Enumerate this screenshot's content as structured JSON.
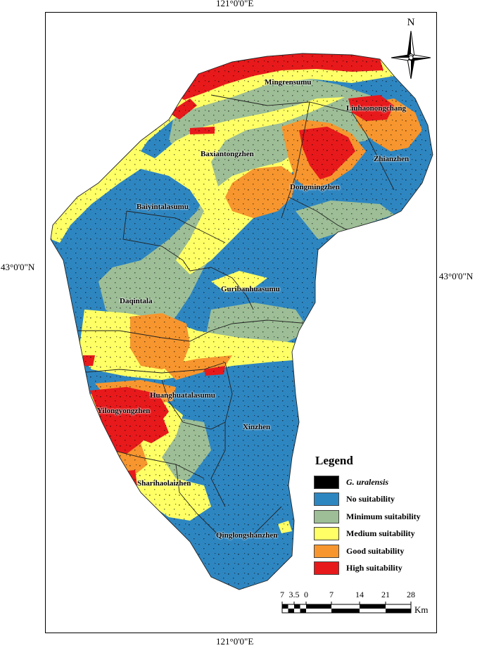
{
  "coordinates": {
    "top": "121°0'0\"E",
    "bottom": "121°0'0\"E",
    "left": "43°0'0\"N",
    "right": "43°0'0\"N"
  },
  "north_arrow": {
    "letter": "N",
    "icon": "north-arrow-icon"
  },
  "places": [
    {
      "name": "Mingrensumu"
    },
    {
      "name": "Liuhaonongchang"
    },
    {
      "name": "Baxiantongzhen"
    },
    {
      "name": "Zhianzhen"
    },
    {
      "name": "Dongmingzhen"
    },
    {
      "name": "Baiyintalasumu"
    },
    {
      "name": "Guribanhuasumu"
    },
    {
      "name": "Daqintala"
    },
    {
      "name": "Huanghuatalasumu"
    },
    {
      "name": "Yilongyongzhen"
    },
    {
      "name": "Xinzhen"
    },
    {
      "name": "Sharihaolaizhen"
    },
    {
      "name": "Qinglongshanzhen"
    }
  ],
  "legend": {
    "title": "Legend",
    "items": [
      {
        "label": "G. uralensis",
        "color": "#000000",
        "italic": true
      },
      {
        "label": "No suitability",
        "color": "#2E86C1",
        "italic": false
      },
      {
        "label": "Minimum suitability",
        "color": "#9DBE96",
        "italic": false
      },
      {
        "label": "Medium suitability",
        "color": "#FFFF66",
        "italic": false
      },
      {
        "label": "Good suitability",
        "color": "#F7962E",
        "italic": false
      },
      {
        "label": "High suitability",
        "color": "#E8191B",
        "italic": false
      }
    ]
  },
  "scale_bar": {
    "ticks": [
      "7",
      "3.5",
      "0",
      "7",
      "14",
      "21",
      "28"
    ],
    "unit": "Km"
  },
  "colors": {
    "no": "#2E86C1",
    "min": "#9DBE96",
    "med": "#FFFF66",
    "good": "#F7962E",
    "high": "#E8191B",
    "occ": "#000000"
  }
}
